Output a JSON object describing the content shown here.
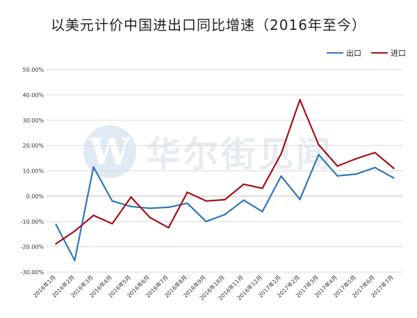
{
  "title": "以美元计价中国进出口同比增速（2016年至今）",
  "watermark": {
    "logo_letter": "W",
    "text": "华尔街见闻"
  },
  "chart_data": {
    "type": "line",
    "title": "以美元计价中国进出口同比增速（2016年至今）",
    "xlabel": "",
    "ylabel": "",
    "ylim": [
      -30,
      50
    ],
    "yticks": [
      "-30.00%",
      "-20.00%",
      "-10.00%",
      "0.00%",
      "10.00%",
      "20.00%",
      "30.00%",
      "40.00%",
      "50.00%"
    ],
    "ytick_values": [
      -30,
      -20,
      -10,
      0,
      10,
      20,
      30,
      40,
      50
    ],
    "grid": true,
    "legend_position": "top-right",
    "categories": [
      "2016年1月",
      "2016年2月",
      "2016年3月",
      "2016年4月",
      "2016年5月",
      "2016年6月",
      "2016年7月",
      "2016年8月",
      "2016年9月",
      "2016年10月",
      "2016年11月",
      "2016年12月",
      "2017年1月",
      "2017年2月",
      "2017年3月",
      "2017年4月",
      "2017年5月",
      "2017年6月",
      "2017年7月"
    ],
    "series": [
      {
        "name": "出口",
        "color": "#2e75b6",
        "values": [
          -11.2,
          -25.4,
          11.5,
          -1.9,
          -4.1,
          -4.8,
          -4.4,
          -2.8,
          -10.0,
          -7.3,
          -1.6,
          -6.1,
          7.9,
          -1.3,
          16.4,
          8.0,
          8.7,
          11.3,
          7.2
        ]
      },
      {
        "name": "进口",
        "color": "#a50f15",
        "values": [
          -18.8,
          -13.8,
          -7.6,
          -10.9,
          -0.4,
          -8.4,
          -12.5,
          1.5,
          -1.9,
          -1.4,
          4.7,
          3.1,
          16.7,
          38.1,
          20.3,
          11.9,
          14.8,
          17.2,
          11.0
        ]
      }
    ]
  }
}
